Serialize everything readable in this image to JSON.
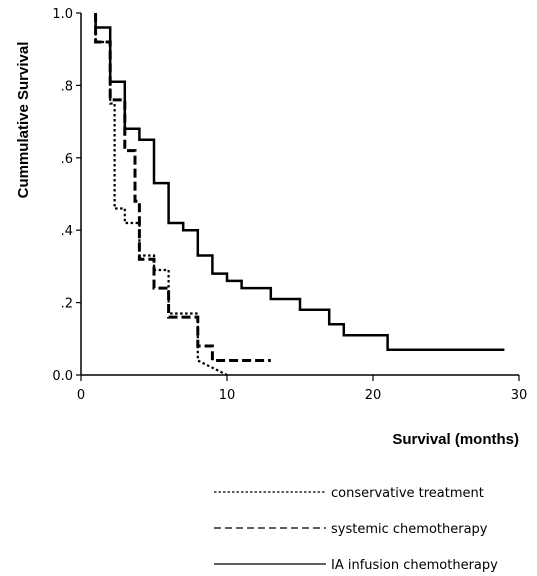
{
  "chart_data": {
    "type": "line",
    "title": "",
    "xlabel": "Survival (months)",
    "ylabel": "Cummulative Survival",
    "xlim": [
      0,
      30
    ],
    "ylim": [
      0,
      1
    ],
    "x_ticks": [
      0,
      10,
      20,
      30
    ],
    "x_tick_labels": [
      "0",
      "10",
      "20",
      "30"
    ],
    "y_ticks": [
      0,
      0.2,
      0.4,
      0.6,
      0.8,
      1.0
    ],
    "y_tick_labels": [
      "0.0",
      ".2",
      ".4",
      ".6",
      ".8",
      "1.0"
    ],
    "grid": false,
    "legend_position": "bottom-right",
    "series": [
      {
        "name": "conservative treatment",
        "style": "dotted",
        "x": [
          1,
          1,
          2,
          2,
          2.3,
          2.3,
          3,
          3,
          4,
          4,
          5,
          5,
          6,
          6,
          7,
          7,
          8,
          8,
          10
        ],
        "y": [
          1.0,
          0.92,
          0.92,
          0.75,
          0.75,
          0.46,
          0.46,
          0.42,
          0.42,
          0.33,
          0.33,
          0.29,
          0.29,
          0.17,
          0.17,
          0.17,
          0.17,
          0.04,
          0.0
        ]
      },
      {
        "name": "systemic chemotherapy",
        "style": "dashed",
        "x": [
          1,
          1,
          2,
          2,
          2.2,
          2.2,
          3,
          3,
          3.7,
          3.7,
          4,
          4,
          5,
          5,
          6,
          6,
          8,
          8,
          9,
          9,
          13
        ],
        "y": [
          1.0,
          0.92,
          0.92,
          0.76,
          0.76,
          0.76,
          0.76,
          0.62,
          0.62,
          0.48,
          0.48,
          0.32,
          0.32,
          0.24,
          0.24,
          0.16,
          0.16,
          0.08,
          0.08,
          0.04,
          0.04
        ]
      },
      {
        "name": "IA infusion chemotherapy",
        "style": "solid",
        "x": [
          1,
          1,
          2,
          2,
          3,
          3,
          4,
          4,
          5,
          5,
          6,
          6,
          7,
          7,
          8,
          8,
          9,
          9,
          10,
          10,
          11,
          11,
          13,
          13,
          15,
          15,
          17,
          17,
          18,
          18,
          21,
          21,
          29
        ],
        "y": [
          1.0,
          0.96,
          0.96,
          0.81,
          0.81,
          0.68,
          0.68,
          0.65,
          0.65,
          0.53,
          0.53,
          0.42,
          0.42,
          0.4,
          0.4,
          0.33,
          0.33,
          0.28,
          0.28,
          0.26,
          0.26,
          0.24,
          0.24,
          0.21,
          0.21,
          0.18,
          0.18,
          0.14,
          0.14,
          0.11,
          0.11,
          0.07,
          0.07
        ]
      }
    ]
  }
}
